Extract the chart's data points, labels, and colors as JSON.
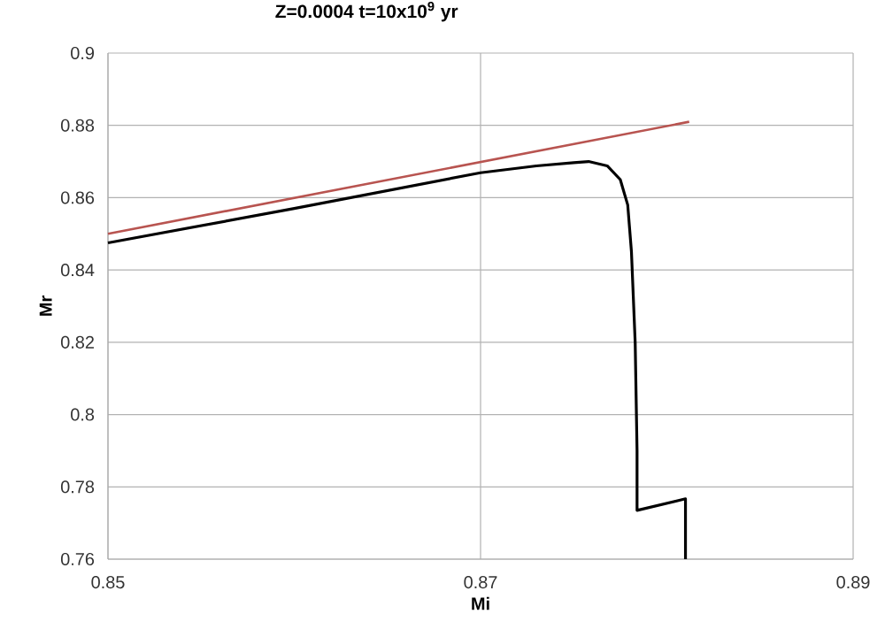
{
  "chart_data": {
    "type": "line",
    "title": "Z=0.0004 t=10x10$^{9}$ yr",
    "xlabel": "Mi",
    "ylabel": "Mr",
    "xlim": [
      0.85,
      0.89
    ],
    "xticks": [
      0.85,
      0.87,
      0.89
    ],
    "ylim": [
      0.76,
      0.9
    ],
    "yticks": [
      0.76,
      0.78,
      0.8,
      0.82,
      0.84,
      0.86,
      0.88,
      0.9
    ],
    "grid": true,
    "legend": false,
    "marker": "none",
    "line_style": "solid",
    "series": [
      {
        "color": "#b85450",
        "x": [
          0.85,
          0.8812
        ],
        "values": [
          0.85,
          0.881
        ]
      },
      {
        "color": "#000000",
        "x": [
          0.85,
          0.86,
          0.87,
          0.873,
          0.875,
          0.8758,
          0.8768,
          0.8775,
          0.8779,
          0.8781,
          0.8783,
          0.8784,
          0.8784,
          0.881,
          0.881
        ],
        "values": [
          0.8475,
          0.857,
          0.8669,
          0.8688,
          0.8697,
          0.87,
          0.8688,
          0.865,
          0.858,
          0.845,
          0.82,
          0.79,
          0.7735,
          0.7767,
          0.76
        ]
      }
    ]
  }
}
